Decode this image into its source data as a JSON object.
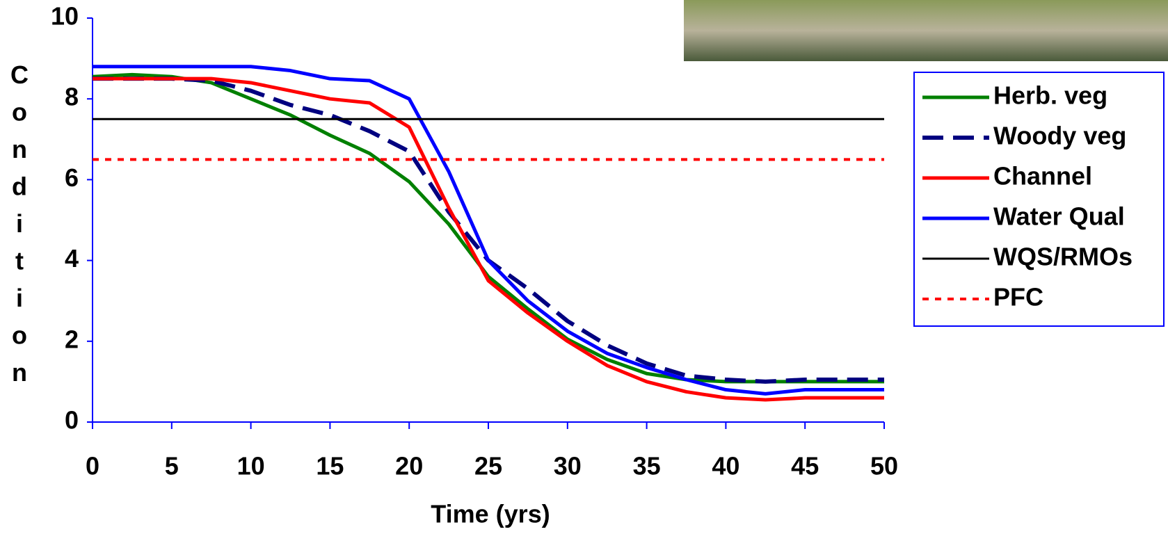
{
  "chart_data": {
    "type": "line",
    "x_label": "Time (yrs)",
    "y_label": "Condition",
    "x": [
      0,
      2.5,
      5,
      7.5,
      10,
      12.5,
      15,
      17.5,
      20,
      22.5,
      25,
      27.5,
      30,
      32.5,
      35,
      37.5,
      40,
      42.5,
      45,
      47.5,
      50
    ],
    "xlim": [
      0,
      50
    ],
    "xticks": [
      0,
      5,
      10,
      15,
      20,
      25,
      30,
      35,
      40,
      45,
      50
    ],
    "ylim": [
      0,
      10
    ],
    "yticks": [
      0,
      2,
      4,
      6,
      8,
      10
    ],
    "legend": "right",
    "series": [
      {
        "name": "Herb. veg",
        "color": "#008000",
        "dash": "solid",
        "values": [
          8.55,
          8.6,
          8.55,
          8.4,
          8.0,
          7.6,
          7.1,
          6.65,
          5.95,
          4.9,
          3.6,
          2.8,
          2.05,
          1.55,
          1.2,
          1.05,
          1.0,
          1.0,
          1.0,
          1.0,
          1.0
        ]
      },
      {
        "name": "Woody veg",
        "color": "#000080",
        "dash": "dashed",
        "values": [
          8.5,
          8.5,
          8.5,
          8.45,
          8.2,
          7.85,
          7.6,
          7.2,
          6.7,
          5.2,
          4.0,
          3.3,
          2.5,
          1.9,
          1.45,
          1.15,
          1.05,
          1.0,
          1.05,
          1.05,
          1.05
        ]
      },
      {
        "name": "Channel",
        "color": "#ff0000",
        "dash": "solid",
        "values": [
          8.5,
          8.5,
          8.5,
          8.5,
          8.4,
          8.2,
          8.0,
          7.9,
          7.3,
          5.3,
          3.5,
          2.7,
          2.0,
          1.4,
          1.0,
          0.75,
          0.6,
          0.55,
          0.6,
          0.6,
          0.6
        ]
      },
      {
        "name": "Water Qual",
        "color": "#0000ff",
        "dash": "solid",
        "values": [
          8.8,
          8.8,
          8.8,
          8.8,
          8.8,
          8.7,
          8.5,
          8.45,
          8.0,
          6.2,
          4.0,
          3.0,
          2.25,
          1.7,
          1.35,
          1.05,
          0.8,
          0.7,
          0.8,
          0.8,
          0.8
        ]
      },
      {
        "name": "WQS/RMOs",
        "color": "#000000",
        "dash": "thin",
        "values": [
          7.5,
          7.5,
          7.5,
          7.5,
          7.5,
          7.5,
          7.5,
          7.5,
          7.5,
          7.5,
          7.5,
          7.5,
          7.5,
          7.5,
          7.5,
          7.5,
          7.5,
          7.5,
          7.5,
          7.5,
          7.5
        ]
      },
      {
        "name": "PFC",
        "color": "#ff0000",
        "dash": "dotted",
        "values": [
          6.5,
          6.5,
          6.5,
          6.5,
          6.5,
          6.5,
          6.5,
          6.5,
          6.5,
          6.5,
          6.5,
          6.5,
          6.5,
          6.5,
          6.5,
          6.5,
          6.5,
          6.5,
          6.5,
          6.5,
          6.5
        ]
      }
    ]
  }
}
